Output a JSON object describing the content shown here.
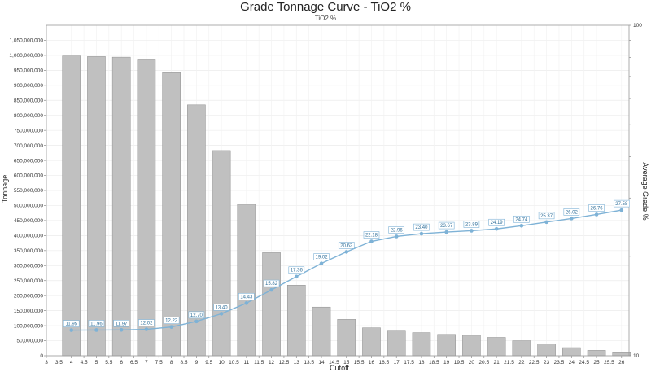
{
  "chart_data": {
    "type": "bar+line",
    "title": "Grade Tonnage Curve - TiO2 %",
    "subtitle": "TiO2 %",
    "xlabel": "Cutoff",
    "ylabel": "Tonnage",
    "y2label": "Average Grade %",
    "x_ticks": [
      "3",
      "3.5",
      "4",
      "4.5",
      "5",
      "5.5",
      "6",
      "6.5",
      "7",
      "7.5",
      "8",
      "8.5",
      "9",
      "9.5",
      "10",
      "10.5",
      "11",
      "11.5",
      "12",
      "12.5",
      "13",
      "13.5",
      "14",
      "14.5",
      "15",
      "15.5",
      "16",
      "16.5",
      "17",
      "17.5",
      "18",
      "18.5",
      "19",
      "19.5",
      "20",
      "20.5",
      "21",
      "21.5",
      "22",
      "22.5",
      "23",
      "23.5",
      "24",
      "24.5",
      "25",
      "25.5",
      "26"
    ],
    "y_ticks": [
      "0",
      "50,000,000",
      "100,000,000",
      "150,000,000",
      "200,000,000",
      "250,000,000",
      "300,000,000",
      "350,000,000",
      "400,000,000",
      "450,000,000",
      "500,000,000",
      "550,000,000",
      "600,000,000",
      "650,000,000",
      "700,000,000",
      "750,000,000",
      "800,000,000",
      "850,000,000",
      "900,000,000",
      "950,000,000",
      "1,000,000,000",
      "1,050,000,000"
    ],
    "y2_ticks": [
      "10",
      "100"
    ],
    "ylim": [
      0,
      1100000000
    ],
    "xlim": [
      3,
      26.3
    ],
    "y2lim": [
      10,
      100
    ],
    "y2_scale": "log",
    "grid": true,
    "colors": {
      "bars": "#c0c0c0",
      "bar_edge": "#8f8f8f",
      "line": "#7eb2d6",
      "label_text": "#2f6f9a"
    },
    "tonnage": {
      "x": [
        4,
        5,
        6,
        7,
        8,
        9,
        10,
        11,
        12,
        13,
        14,
        15,
        16,
        17,
        18,
        19,
        20,
        21,
        22,
        23,
        24,
        25,
        26
      ],
      "values": [
        998000000,
        996000000,
        994000000,
        985000000,
        942000000,
        835000000,
        683000000,
        504000000,
        343000000,
        235000000,
        162000000,
        121000000,
        93000000,
        82000000,
        77000000,
        71000000,
        68000000,
        61000000,
        50000000,
        39000000,
        27000000,
        18000000,
        10000000
      ]
    },
    "grade": {
      "x": [
        4,
        5,
        6,
        7,
        8,
        9,
        10,
        11,
        12,
        13,
        14,
        15,
        16,
        17,
        18,
        19,
        20,
        21,
        22,
        23,
        24,
        25,
        26
      ],
      "values": [
        11.95,
        11.96,
        11.97,
        12.02,
        12.22,
        12.7,
        13.4,
        14.43,
        15.82,
        17.36,
        19.02,
        20.62,
        22.18,
        22.96,
        23.4,
        23.67,
        23.89,
        24.19,
        24.74,
        25.37,
        26.02,
        26.76,
        27.58
      ],
      "labels": [
        "11.95",
        "11.96",
        "11.97",
        "12.02",
        "12.22",
        "12.70",
        "13.40",
        "14.43",
        "15.82",
        "17.36",
        "19.02",
        "20.62",
        "22.18",
        "22.96",
        "23.40",
        "23.67",
        "23.89",
        "24.19",
        "24.74",
        "25.37",
        "26.02",
        "26.76",
        "27.58"
      ]
    }
  }
}
